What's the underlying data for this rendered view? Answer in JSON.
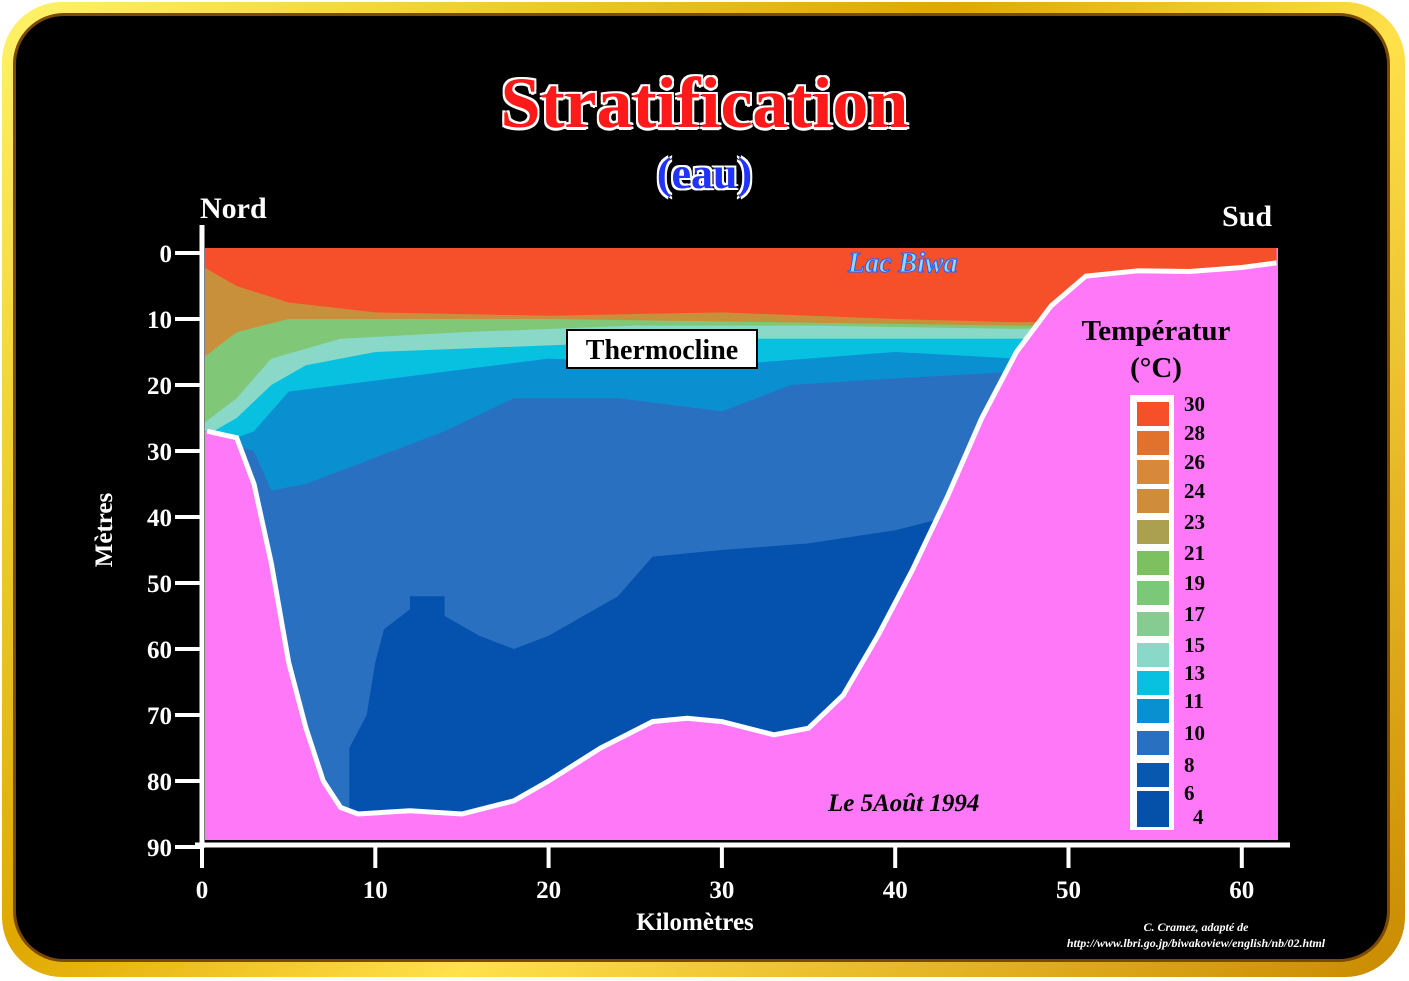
{
  "title": "Stratification",
  "subtitle": "(eau)",
  "labels": {
    "north": "Nord",
    "south": "Sud",
    "lake": "Lac Biwa",
    "thermocline": "Thermocline",
    "date": "Le 5Août 1994"
  },
  "legend": {
    "title_line1": "Températur",
    "title_line2": "(°C)",
    "entries": [
      {
        "label": "30",
        "color": "#f5502a"
      },
      {
        "label": "28",
        "color": "#e0722e"
      },
      {
        "label": "26",
        "color": "#d8883a"
      },
      {
        "label": "24",
        "color": "#cf8c3a"
      },
      {
        "label": "23",
        "color": "#aaa050"
      },
      {
        "label": "21",
        "color": "#7cc060"
      },
      {
        "label": "19",
        "color": "#7ac878"
      },
      {
        "label": "17",
        "color": "#86cc90"
      },
      {
        "label": "15",
        "color": "#8ad8c8"
      },
      {
        "label": "13",
        "color": "#08c0e0"
      },
      {
        "label": "11",
        "color": "#0890d0"
      },
      {
        "label": "10",
        "color": "#2a70c0"
      },
      {
        "label": "8",
        "color": "#0858b0"
      },
      {
        "label": "6",
        "color": "#0550a8"
      }
    ],
    "extra_label": "4"
  },
  "credit": {
    "line1": "C. Cramez, adapté de",
    "line2": "http://www.lbri.go.jp/biwakoview/english/nb/02.html"
  },
  "chart_data": {
    "type": "area",
    "title": "Stratification (eau)",
    "xlabel": "Kilomètres",
    "ylabel": "Mètres",
    "xlim": [
      0,
      62
    ],
    "ylim": [
      90,
      0
    ],
    "xticks": [
      "0",
      "10",
      "20",
      "30",
      "40",
      "50",
      "60"
    ],
    "yticks": [
      "0",
      "10",
      "20",
      "30",
      "40",
      "50",
      "60",
      "70",
      "80",
      "90"
    ],
    "lake_bottom_profile": {
      "x_km": [
        0.3,
        2,
        3,
        4,
        5,
        6,
        7,
        8,
        9,
        12,
        15,
        18,
        20,
        23,
        26,
        28,
        30,
        33,
        35,
        37,
        39,
        41,
        43,
        45,
        47,
        49,
        51,
        54,
        57,
        60,
        62
      ],
      "depth_m": [
        27,
        28,
        35,
        47,
        62,
        72,
        80,
        84,
        85,
        84.5,
        85,
        83,
        80,
        75,
        71,
        70.5,
        71,
        73,
        72,
        67,
        58,
        48,
        37,
        25,
        15,
        8,
        3.5,
        2.7,
        2.8,
        2.2,
        1.5
      ]
    },
    "colors": {
      "ground": "#ff78f8",
      "frame": "#f0c000"
    }
  }
}
